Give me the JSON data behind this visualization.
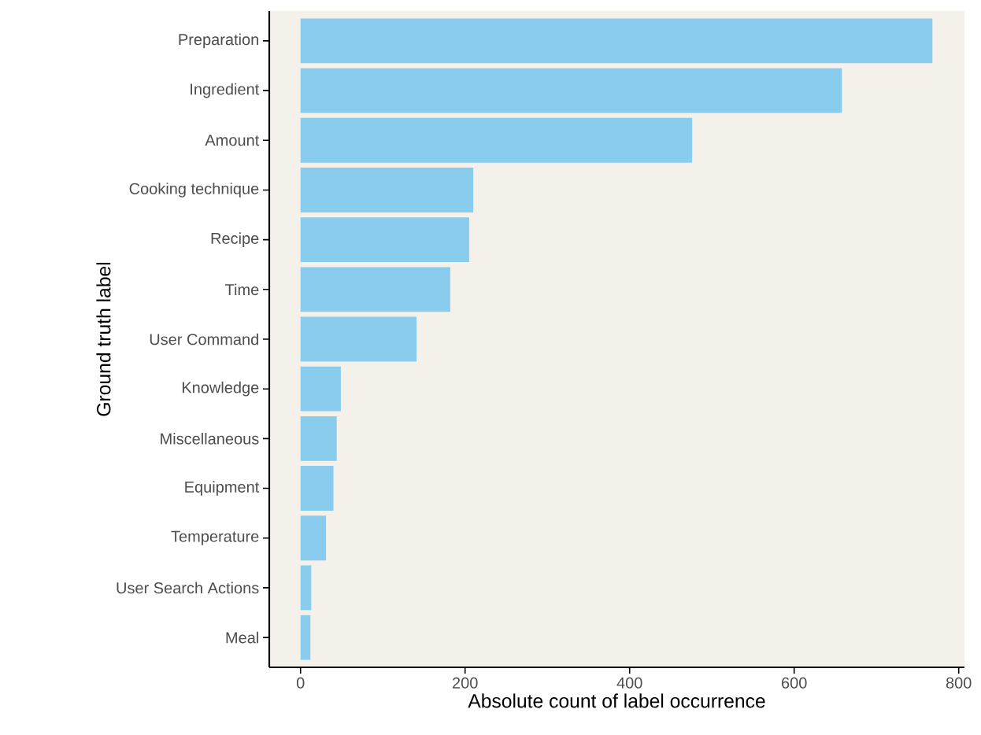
{
  "chart_data": {
    "type": "bar",
    "orientation": "horizontal",
    "xlabel": "Absolute count of label occurrence",
    "ylabel": "Ground truth label",
    "categories": [
      "Preparation",
      "Ingredient",
      "Amount",
      "Cooking technique",
      "Recipe",
      "Time",
      "User Command",
      "Knowledge",
      "Miscellaneous",
      "Equipment",
      "Temperature",
      "User Search Actions",
      "Meal"
    ],
    "values": [
      768,
      658,
      476,
      210,
      205,
      182,
      141,
      49,
      44,
      40,
      31,
      13,
      12
    ],
    "color": "#89cced",
    "xlim": [
      -38,
      807
    ],
    "xticks": [
      0,
      200,
      400,
      600,
      800
    ],
    "grid": false
  }
}
